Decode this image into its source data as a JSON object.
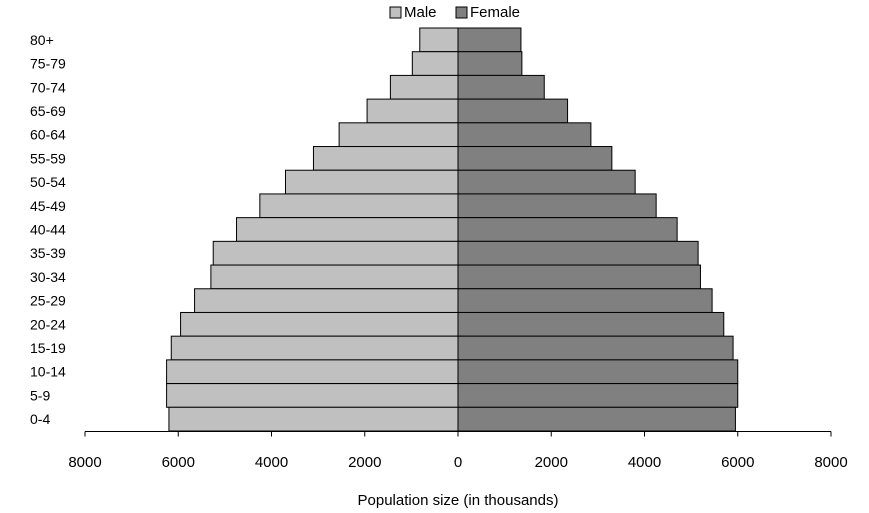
{
  "chart_data": {
    "type": "bar",
    "orientation": "horizontal",
    "variant": "population-pyramid",
    "categories": [
      "80+",
      "75-79",
      "70-74",
      "65-69",
      "60-64",
      "55-59",
      "50-54",
      "45-49",
      "40-44",
      "35-39",
      "30-34",
      "25-29",
      "20-24",
      "15-19",
      "10-14",
      "5-9",
      "0-4"
    ],
    "series": [
      {
        "name": "Male",
        "color": "#c0c0c0",
        "side": "left",
        "values": [
          820,
          980,
          1450,
          1950,
          2550,
          3100,
          3700,
          4250,
          4750,
          5250,
          5300,
          5650,
          5950,
          6150,
          6250,
          6250,
          6200
        ]
      },
      {
        "name": "Female",
        "color": "#808080",
        "side": "right",
        "values": [
          1350,
          1370,
          1850,
          2350,
          2850,
          3300,
          3800,
          4250,
          4700,
          5150,
          5200,
          5450,
          5700,
          5900,
          6000,
          6000,
          5950
        ]
      }
    ],
    "xlim": [
      -8000,
      8000
    ],
    "xticks": [
      -8000,
      -6000,
      -4000,
      -2000,
      0,
      2000,
      4000,
      6000,
      8000
    ],
    "xtick_labels": [
      "8000",
      "6000",
      "4000",
      "2000",
      "0",
      "2000",
      "4000",
      "6000",
      "8000"
    ],
    "xlabel": "Population size (in thousands)",
    "ylabel": "",
    "title": "",
    "legend": {
      "position": "top-center",
      "entries": [
        "Male",
        "Female"
      ]
    },
    "grid": false
  }
}
